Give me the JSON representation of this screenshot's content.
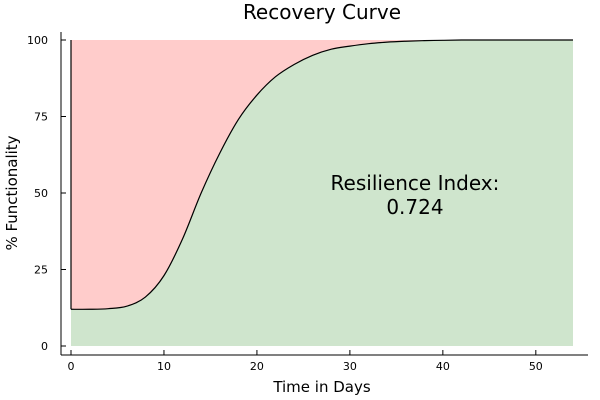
{
  "chart_data": {
    "type": "area",
    "title": "Recovery Curve",
    "xlabel": "Time in Days",
    "ylabel": "% Functionality",
    "xlim": [
      0,
      54
    ],
    "ylim": [
      0,
      100
    ],
    "xticks": [
      0,
      10,
      20,
      30,
      40,
      50
    ],
    "yticks": [
      0,
      25,
      50,
      75,
      100
    ],
    "grid": false,
    "series": [
      {
        "x": [
          0,
          2,
          4,
          6,
          8,
          10,
          12,
          14,
          16,
          18,
          20,
          22,
          24,
          26,
          28,
          30,
          32,
          34,
          36,
          38,
          40,
          42,
          44,
          46,
          48,
          50,
          52,
          54
        ],
        "y": [
          12,
          12,
          12.2,
          13,
          16,
          23,
          35,
          50,
          63,
          74,
          82,
          88,
          92,
          95,
          97,
          98,
          98.8,
          99.3,
          99.6,
          99.8,
          99.9,
          100,
          100,
          100,
          100,
          100,
          100,
          100
        ]
      }
    ],
    "fill_above_color": "#ffcccb",
    "fill_below_color": "#cfe5cd",
    "line_color": "#000000",
    "annotation": {
      "line1": "Resilience Index:",
      "line2": "0.724",
      "x": 37,
      "y": 50
    }
  }
}
